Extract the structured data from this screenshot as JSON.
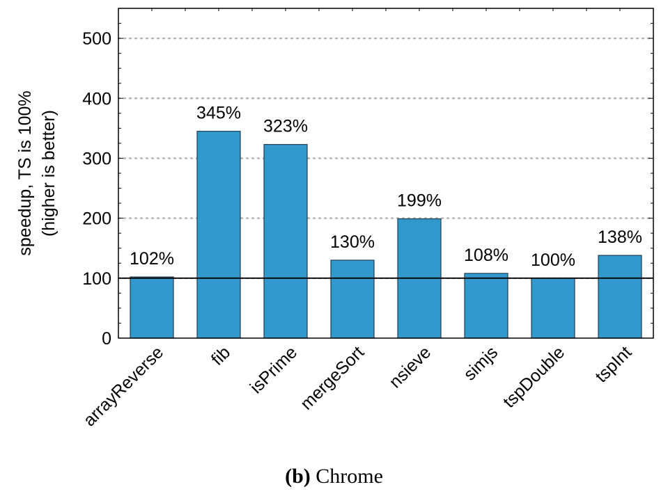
{
  "caption": {
    "label": "(b)",
    "text": "Chrome"
  },
  "colors": {
    "bar_fill": "#3399cc",
    "bar_stroke": "#1f3f55",
    "grid": "#b5b5b5",
    "reference_line": "#000000"
  },
  "chart_data": {
    "type": "bar",
    "title": "",
    "xlabel": "",
    "ylabel": [
      "speedup, TS is 100%",
      "(higher is better)"
    ],
    "ylim": [
      0,
      550
    ],
    "yticks": [
      0,
      100,
      200,
      300,
      400,
      500
    ],
    "grid": true,
    "reference_line": 100,
    "categories": [
      "arrayReverse",
      "fib",
      "isPrime",
      "mergeSort",
      "nsieve",
      "simjs",
      "tspDouble",
      "tspInt"
    ],
    "values": [
      102,
      345,
      323,
      130,
      199,
      108,
      100,
      138
    ],
    "data_labels": [
      "102%",
      "345%",
      "323%",
      "130%",
      "199%",
      "108%",
      "100%",
      "138%"
    ]
  }
}
